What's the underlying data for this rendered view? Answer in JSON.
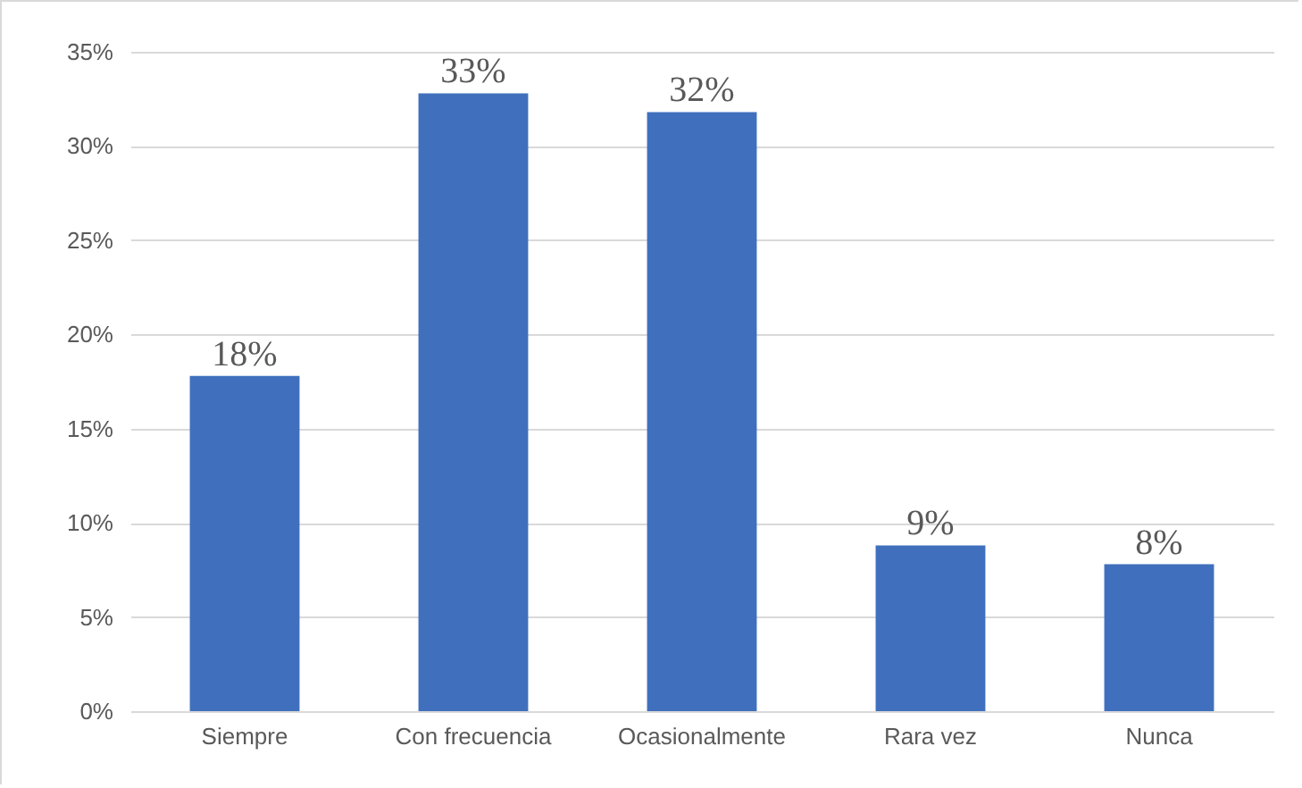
{
  "chart_data": {
    "type": "bar",
    "categories": [
      "Siempre",
      "Con frecuencia",
      "Ocasionalmente",
      "Rara vez",
      "Nunca"
    ],
    "values": [
      17.8,
      32.8,
      31.8,
      8.8,
      7.8
    ],
    "value_labels": [
      "18%",
      "33%",
      "32%",
      "9%",
      "8%"
    ],
    "color": "#4070bd",
    "ylim": [
      0,
      35
    ],
    "yticks": [
      {
        "value": 0,
        "label": "0%"
      },
      {
        "value": 5,
        "label": "5%"
      },
      {
        "value": 10,
        "label": "10%"
      },
      {
        "value": 15,
        "label": "15%"
      },
      {
        "value": 20,
        "label": "20%"
      },
      {
        "value": 25,
        "label": "25%"
      },
      {
        "value": 30,
        "label": "30%"
      },
      {
        "value": 35,
        "label": "35%"
      }
    ],
    "grid": "y"
  }
}
